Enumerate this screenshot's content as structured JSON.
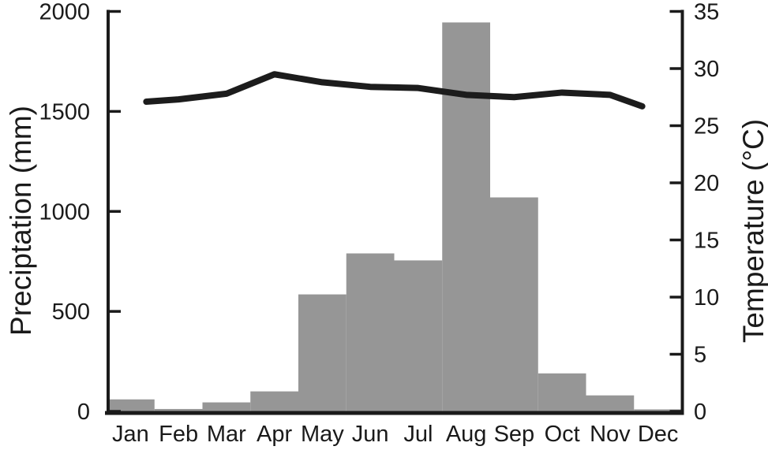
{
  "chart_data": {
    "type": "bar",
    "title": "",
    "categories": [
      "Jan",
      "Feb",
      "Mar",
      "Apr",
      "May",
      "Jun",
      "Jul",
      "Aug",
      "Sep",
      "Oct",
      "Nov",
      "Dec"
    ],
    "series": [
      {
        "name": "Precipitation",
        "type": "bar",
        "axis": "left",
        "values": [
          60,
          12,
          45,
          100,
          585,
          790,
          755,
          1945,
          1070,
          190,
          80,
          10
        ]
      },
      {
        "name": "Temperature",
        "type": "line",
        "axis": "right",
        "values": [
          27.1,
          27.3,
          27.8,
          29.5,
          28.8,
          28.4,
          28.3,
          27.7,
          27.5,
          27.9,
          27.7,
          26.7
        ]
      }
    ],
    "ylabel_left": "Preciptation (mm)",
    "ylabel_right": "Temperature (°C)",
    "ylim_left": [
      0,
      2000
    ],
    "ylim_right": [
      0,
      35
    ],
    "yticks_left": [
      0,
      500,
      1000,
      1500,
      2000
    ],
    "yticks_right": [
      0,
      5,
      10,
      15,
      20,
      25,
      30,
      35
    ],
    "grid": false,
    "legend": "none",
    "bar_color": "#969696",
    "line_color": "#1c1c1c",
    "axis_color": "#1a1a1a"
  }
}
